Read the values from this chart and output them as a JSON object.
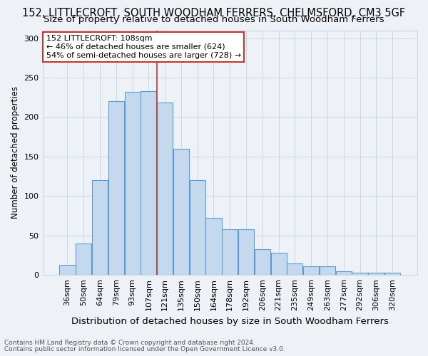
{
  "title1": "152, LITTLECROFT, SOUTH WOODHAM FERRERS, CHELMSFORD, CM3 5GF",
  "title2": "Size of property relative to detached houses in South Woodham Ferrers",
  "xlabel": "Distribution of detached houses by size in South Woodham Ferrers",
  "ylabel": "Number of detached properties",
  "footnote1": "Contains HM Land Registry data © Crown copyright and database right 2024.",
  "footnote2": "Contains public sector information licensed under the Open Government Licence v3.0.",
  "categories": [
    "36sqm",
    "50sqm",
    "64sqm",
    "79sqm",
    "93sqm",
    "107sqm",
    "121sqm",
    "135sqm",
    "150sqm",
    "164sqm",
    "178sqm",
    "192sqm",
    "206sqm",
    "221sqm",
    "235sqm",
    "249sqm",
    "263sqm",
    "277sqm",
    "292sqm",
    "306sqm",
    "320sqm"
  ],
  "values": [
    13,
    40,
    120,
    220,
    232,
    233,
    218,
    160,
    120,
    72,
    58,
    58,
    33,
    28,
    15,
    11,
    11,
    5,
    3,
    3,
    3
  ],
  "bar_color": "#c5d9ee",
  "bar_edge_color": "#5b9bd5",
  "grid_color": "#c8d8e8",
  "background_color": "#eef2f7",
  "plot_bg_color": "#eef2f7",
  "vline_x": 5.5,
  "vline_color": "#c0392b",
  "annotation_text": "152 LITTLECROFT: 108sqm\n← 46% of detached houses are smaller (624)\n54% of semi-detached houses are larger (728) →",
  "annotation_box_facecolor": "#ffffff",
  "annotation_box_edgecolor": "#c0392b",
  "ylim": [
    0,
    310
  ],
  "yticks": [
    0,
    50,
    100,
    150,
    200,
    250,
    300
  ],
  "title1_fontsize": 10.5,
  "title2_fontsize": 9.5,
  "xlabel_fontsize": 9.5,
  "ylabel_fontsize": 8.5,
  "tick_fontsize": 8,
  "annotation_fontsize": 8,
  "footnote_fontsize": 6.5
}
